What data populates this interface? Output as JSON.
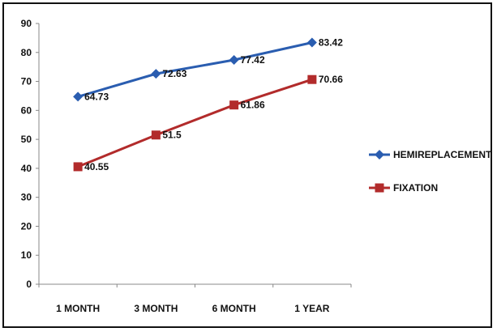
{
  "chart_data": {
    "type": "line",
    "title": "",
    "xlabel": "",
    "ylabel": "",
    "categories": [
      "1 MONTH",
      "3 MONTH",
      "6 MONTH",
      "1 YEAR"
    ],
    "ylim": [
      0,
      90
    ],
    "yticks": [
      0,
      10,
      20,
      30,
      40,
      50,
      60,
      70,
      80,
      90
    ],
    "grid": false,
    "legend": "right",
    "series": [
      {
        "name": "HEMIREPLACEMENT",
        "values": [
          64.73,
          72.63,
          77.42,
          83.42
        ],
        "labels": [
          "64.73",
          "72.63",
          "77.42",
          "83.42"
        ],
        "color": "#2a5db0",
        "marker": "diamond"
      },
      {
        "name": "FIXATION",
        "values": [
          40.55,
          51.5,
          61.86,
          70.66
        ],
        "labels": [
          "40.55",
          "51.5",
          "61.86",
          "70.66"
        ],
        "color": "#b22b2b",
        "marker": "square"
      }
    ]
  }
}
